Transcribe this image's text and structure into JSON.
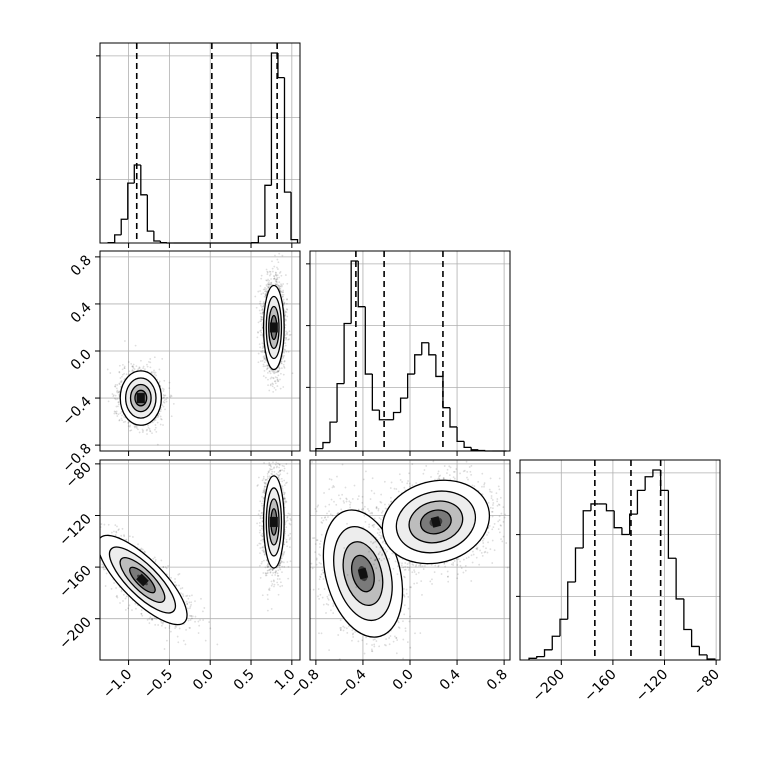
{
  "chart_data": {
    "type": "corner",
    "title": "",
    "grid": true,
    "parameters": [
      {
        "id": "p1",
        "label": "",
        "range": [
          -1.35,
          1.1
        ],
        "ticks": [
          -1.0,
          -0.5,
          0.0,
          0.5,
          1.0
        ],
        "tick_labels": [
          "−1.0",
          "−0.5",
          "0.0",
          "0.5",
          "1.0"
        ]
      },
      {
        "id": "p2",
        "label": "",
        "range": [
          -0.85,
          0.85
        ],
        "ticks": [
          -0.8,
          -0.4,
          0.0,
          0.4,
          0.8
        ],
        "tick_labels": [
          "−0.8",
          "−0.4",
          "0.0",
          "0.4",
          "0.8"
        ]
      },
      {
        "id": "p3",
        "label": "",
        "range": [
          -232,
          -77
        ],
        "ticks": [
          -200,
          -160,
          -120,
          -80
        ],
        "tick_labels": [
          "−200",
          "−160",
          "−120",
          "−80"
        ]
      }
    ],
    "histograms": [
      {
        "param": "p1",
        "edges": [
          -1.25,
          -1.17,
          -1.09,
          -1.01,
          -0.93,
          -0.85,
          -0.77,
          -0.69,
          -0.61,
          -0.53,
          -0.45,
          -0.37,
          -0.29,
          -0.21,
          -0.13,
          -0.05,
          0.03,
          0.11,
          0.19,
          0.27,
          0.35,
          0.43,
          0.51,
          0.59,
          0.67,
          0.75,
          0.83,
          0.91,
          0.99,
          1.07
        ],
        "counts": [
          2,
          48,
          140,
          353,
          460,
          284,
          70,
          12,
          2,
          0,
          0,
          0,
          0,
          0,
          0,
          0,
          0,
          0,
          0,
          0,
          0,
          0,
          2,
          40,
          340,
          1120,
          975,
          300,
          20
        ],
        "quantiles": [
          -0.9,
          0.02,
          0.82
        ]
      },
      {
        "param": "p2",
        "edges": [
          -0.8,
          -0.74,
          -0.68,
          -0.62,
          -0.56,
          -0.5,
          -0.44,
          -0.38,
          -0.32,
          -0.26,
          -0.2,
          -0.14,
          -0.08,
          -0.02,
          0.04,
          0.1,
          0.16,
          0.22,
          0.28,
          0.34,
          0.4,
          0.46,
          0.52,
          0.58,
          0.64,
          0.7,
          0.76,
          0.82
        ],
        "counts": [
          10,
          35,
          120,
          280,
          530,
          790,
          600,
          320,
          170,
          130,
          130,
          160,
          220,
          320,
          400,
          450,
          400,
          310,
          180,
          100,
          40,
          15,
          5,
          2,
          0,
          0,
          0
        ],
        "quantiles": [
          -0.46,
          -0.22,
          0.28
        ]
      },
      {
        "param": "p3",
        "edges": [
          -225,
          -219,
          -213,
          -207,
          -201,
          -195,
          -189,
          -183,
          -177,
          -171,
          -165,
          -159,
          -153,
          -147,
          -141,
          -135,
          -129,
          -123,
          -117,
          -111,
          -105,
          -99,
          -93,
          -87,
          -81
        ],
        "counts": [
          5,
          10,
          30,
          70,
          120,
          230,
          330,
          440,
          460,
          460,
          440,
          390,
          370,
          430,
          500,
          540,
          560,
          500,
          300,
          180,
          90,
          40,
          15,
          3
        ],
        "quantiles": [
          -174,
          -146,
          -123
        ]
      }
    ],
    "density_panels": [
      {
        "x": "p1",
        "y": "p2",
        "modes": [
          {
            "cx": -0.85,
            "cy": -0.4,
            "sx": 0.12,
            "sy": 0.11,
            "rot": 0,
            "n": 1700
          },
          {
            "cx": 0.78,
            "cy": 0.2,
            "sx": 0.06,
            "sy": 0.17,
            "rot": 0,
            "n": 2600
          }
        ]
      },
      {
        "x": "p1",
        "y": "p3",
        "modes": [
          {
            "cx": -0.83,
            "cy": -170,
            "sx": 0.12,
            "sy": 22,
            "rot": 45,
            "n": 1700
          },
          {
            "cx": 0.78,
            "cy": -125,
            "sx": 0.06,
            "sy": 17,
            "rot": 0,
            "n": 2600
          }
        ]
      },
      {
        "x": "p2",
        "y": "p3",
        "modes": [
          {
            "cx": -0.4,
            "cy": -165,
            "sx": 0.15,
            "sy": 24,
            "rot": 15,
            "n": 1800
          },
          {
            "cx": 0.22,
            "cy": -125,
            "sx": 0.22,
            "sy": 15,
            "rot": 15,
            "n": 2400
          }
        ]
      }
    ]
  },
  "colors": {
    "line": "#000000",
    "grid": "#b0b0b0",
    "points": "#000000"
  }
}
